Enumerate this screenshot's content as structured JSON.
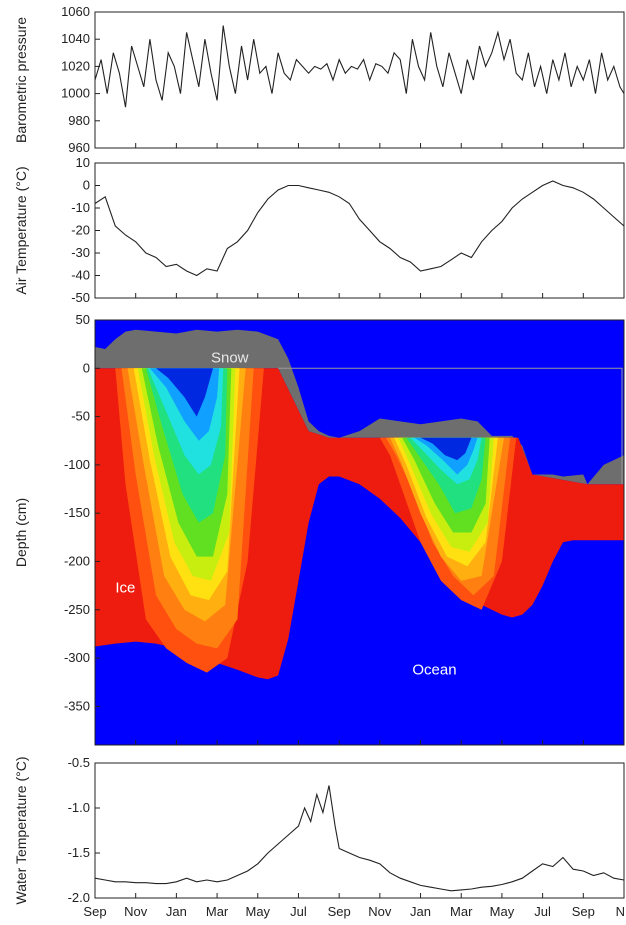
{
  "chart_data": [
    {
      "type": "line",
      "panel": "pressure",
      "ylabel": "Barometric pressure",
      "ylim": [
        960,
        1060
      ],
      "yticks": [
        960,
        980,
        1000,
        1020,
        1040,
        1060
      ],
      "x_range_months": [
        0,
        26
      ],
      "series": [
        {
          "x": [
            0,
            0.3,
            0.6,
            0.9,
            1.2,
            1.5,
            1.8,
            2.1,
            2.4,
            2.7,
            3.0,
            3.3,
            3.6,
            3.9,
            4.2,
            4.5,
            4.8,
            5.1,
            5.4,
            5.7,
            6.0,
            6.3,
            6.6,
            6.9,
            7.2,
            7.5,
            7.8,
            8.1,
            8.4,
            8.7,
            9.0,
            9.3,
            9.6,
            9.9,
            10.2,
            10.5,
            10.8,
            11.1,
            11.4,
            11.7,
            12.0,
            12.3,
            12.6,
            12.9,
            13.2,
            13.5,
            13.8,
            14.1,
            14.4,
            14.7,
            15.0,
            15.3,
            15.6,
            15.9,
            16.2,
            16.5,
            16.8,
            17.1,
            17.4,
            17.7,
            18.0,
            18.3,
            18.6,
            18.9,
            19.2,
            19.5,
            19.8,
            20.1,
            20.4,
            20.7,
            21.0,
            21.3,
            21.6,
            21.9,
            22.2,
            22.5,
            22.8,
            23.1,
            23.4,
            23.7,
            24.0,
            24.3,
            24.6,
            24.9,
            25.2,
            25.5,
            25.8,
            26.0
          ],
          "y": [
            1010,
            1025,
            1000,
            1030,
            1015,
            990,
            1035,
            1020,
            1005,
            1040,
            1010,
            995,
            1030,
            1020,
            1000,
            1045,
            1025,
            1005,
            1040,
            1015,
            995,
            1050,
            1020,
            1000,
            1035,
            1010,
            1040,
            1015,
            1020,
            1000,
            1030,
            1015,
            1010,
            1025,
            1020,
            1015,
            1020,
            1018,
            1022,
            1010,
            1025,
            1015,
            1020,
            1018,
            1025,
            1010,
            1022,
            1020,
            1015,
            1030,
            1025,
            1000,
            1040,
            1020,
            1010,
            1045,
            1020,
            1005,
            1030,
            1015,
            1000,
            1025,
            1010,
            1035,
            1020,
            1030,
            1045,
            1025,
            1040,
            1015,
            1010,
            1030,
            1005,
            1020,
            1000,
            1025,
            1010,
            1030,
            1005,
            1020,
            1010,
            1025,
            1000,
            1030,
            1010,
            1020,
            1005,
            1000
          ]
        }
      ]
    },
    {
      "type": "line",
      "panel": "air",
      "ylabel": "Air Temperature (°C)",
      "ylim": [
        -50,
        10
      ],
      "yticks": [
        -50,
        -40,
        -30,
        -20,
        -10,
        0,
        10
      ],
      "x_range_months": [
        0,
        26
      ],
      "series": [
        {
          "x": [
            0,
            0.5,
            1.0,
            1.5,
            2.0,
            2.5,
            3.0,
            3.5,
            4.0,
            4.5,
            5.0,
            5.5,
            6.0,
            6.5,
            7.0,
            7.5,
            8.0,
            8.5,
            9.0,
            9.5,
            10.0,
            10.5,
            11.0,
            11.5,
            12.0,
            12.5,
            13.0,
            13.5,
            14.0,
            14.5,
            15.0,
            15.5,
            16.0,
            16.5,
            17.0,
            17.5,
            18.0,
            18.5,
            19.0,
            19.5,
            20.0,
            20.5,
            21.0,
            21.5,
            22.0,
            22.5,
            23.0,
            23.5,
            24.0,
            24.5,
            25.0,
            25.5,
            26.0
          ],
          "y": [
            -8,
            -5,
            -18,
            -22,
            -25,
            -30,
            -32,
            -36,
            -35,
            -38,
            -40,
            -37,
            -38,
            -28,
            -25,
            -20,
            -12,
            -6,
            -2,
            0,
            0,
            -1,
            -2,
            -3,
            -5,
            -8,
            -15,
            -20,
            -25,
            -28,
            -32,
            -34,
            -38,
            -37,
            -36,
            -33,
            -30,
            -32,
            -25,
            -20,
            -16,
            -10,
            -6,
            -3,
            0,
            2,
            0,
            -1,
            -3,
            -6,
            -10,
            -14,
            -18
          ]
        }
      ]
    },
    {
      "type": "heatmap",
      "panel": "depth",
      "ylabel": "Depth (cm)",
      "ylim": [
        -390,
        50
      ],
      "yticks": [
        -350,
        -300,
        -250,
        -200,
        -150,
        -100,
        -50,
        0,
        50
      ],
      "annotations": {
        "snow": "Snow",
        "ice": "Ice",
        "ocean": "Ocean"
      },
      "colors": {
        "ocean": "#0000ff",
        "ice": "#ee1c0e",
        "snow": "#6e6e6e"
      },
      "snow_top": {
        "x": [
          0,
          0.5,
          1.0,
          1.5,
          2.0,
          3.0,
          4.0,
          5.0,
          6.0,
          7.0,
          8.0,
          9.0,
          9.5,
          10.0,
          10.5,
          11.0,
          11.5,
          12.0,
          13.0,
          14.0,
          15.0,
          16.0,
          17.0,
          18.0,
          18.8,
          19.5,
          20.5,
          21.0,
          21.5,
          22.0,
          22.5,
          23.0,
          24.0,
          24.2,
          25.0,
          26.0
        ],
        "y": [
          22,
          20,
          30,
          38,
          40,
          38,
          36,
          40,
          38,
          40,
          38,
          30,
          10,
          -20,
          -55,
          -65,
          -70,
          -72,
          -65,
          -52,
          -55,
          -58,
          -55,
          -52,
          -55,
          -70,
          -70,
          -80,
          -110,
          -110,
          -110,
          -112,
          -110,
          -120,
          -100,
          -90
        ]
      },
      "ice_top": {
        "x": [
          0,
          8.5,
          9.0,
          10.5,
          11.5,
          12.0,
          20.8,
          21.5,
          24.2,
          26.0
        ],
        "y": [
          0,
          0,
          0,
          -65,
          -72,
          -72,
          -72,
          -110,
          -120,
          -120
        ]
      },
      "ocean_top": {
        "x": [
          0,
          1.0,
          2.0,
          3.0,
          4.0,
          5.0,
          6.0,
          7.0,
          8.0,
          8.5,
          9.0,
          9.5,
          10.0,
          10.5,
          11.0,
          11.5,
          12.0,
          13.0,
          14.0,
          15.0,
          16.0,
          17.0,
          18.0,
          18.5,
          19.0,
          19.5,
          20.0,
          20.5,
          21.0,
          21.5,
          22.0,
          22.5,
          23.0,
          23.5,
          24.0,
          24.5,
          25.0,
          26.0
        ],
        "y": [
          -288,
          -285,
          -283,
          -285,
          -290,
          -297,
          -305,
          -312,
          -320,
          -322,
          -318,
          -280,
          -220,
          -160,
          -120,
          -112,
          -112,
          -120,
          -135,
          -155,
          -180,
          -205,
          -225,
          -238,
          -245,
          -250,
          -255,
          -258,
          -255,
          -245,
          -225,
          -200,
          -180,
          -178,
          -178,
          -178,
          -178,
          -178
        ]
      },
      "bands": [
        {
          "name": "b1",
          "color": "#ff5010",
          "x": [
            1.0,
            1.5,
            2.5,
            3.5,
            4.5,
            5.5,
            6.5,
            7.5,
            8.3
          ],
          "y": [
            0,
            -120,
            -260,
            -290,
            -305,
            -315,
            -300,
            -200,
            0
          ]
        },
        {
          "name": "b2",
          "color": "#ff8010",
          "x": [
            1.3,
            2.0,
            3.0,
            4.0,
            5.0,
            6.0,
            7.0,
            7.8
          ],
          "y": [
            0,
            -110,
            -235,
            -270,
            -285,
            -290,
            -260,
            0
          ]
        },
        {
          "name": "b3",
          "color": "#ffb010",
          "x": [
            1.6,
            2.4,
            3.4,
            4.4,
            5.4,
            6.4,
            7.4
          ],
          "y": [
            0,
            -100,
            -215,
            -250,
            -262,
            -245,
            0
          ]
        },
        {
          "name": "b4",
          "color": "#ffe010",
          "x": [
            1.9,
            2.7,
            3.7,
            4.7,
            5.6,
            6.5,
            7.1
          ],
          "y": [
            0,
            -95,
            -195,
            -235,
            -240,
            -210,
            0
          ]
        },
        {
          "name": "b5",
          "color": "#c8ee10",
          "x": [
            2.1,
            2.9,
            3.9,
            4.8,
            5.7,
            6.6,
            6.9
          ],
          "y": [
            0,
            -90,
            -180,
            -215,
            -220,
            -170,
            0
          ]
        },
        {
          "name": "b6",
          "color": "#60e020",
          "x": [
            2.3,
            3.1,
            4.1,
            5.0,
            5.8,
            6.5,
            6.7
          ],
          "y": [
            0,
            -80,
            -160,
            -195,
            -195,
            -130,
            0
          ]
        },
        {
          "name": "b7",
          "color": "#20e080",
          "x": [
            2.5,
            3.3,
            4.3,
            5.1,
            5.8,
            6.4,
            6.5
          ],
          "y": [
            0,
            -60,
            -130,
            -160,
            -150,
            -90,
            0
          ]
        },
        {
          "name": "b8",
          "color": "#20e0e0",
          "x": [
            2.6,
            3.4,
            4.4,
            5.1,
            5.7,
            6.2,
            6.3
          ],
          "y": [
            0,
            -40,
            -90,
            -110,
            -100,
            -60,
            0
          ]
        },
        {
          "name": "b9",
          "color": "#10a0ff",
          "x": [
            2.7,
            3.5,
            4.4,
            5.1,
            5.6,
            6.0,
            6.1
          ],
          "y": [
            0,
            -20,
            -55,
            -75,
            -65,
            -30,
            0
          ]
        },
        {
          "name": "b10",
          "color": "#0028e0",
          "x": [
            3.0,
            3.6,
            4.4,
            5.0,
            5.4,
            5.8
          ],
          "y": [
            0,
            -10,
            -30,
            -50,
            -30,
            0
          ]
        },
        {
          "name": "c1",
          "color": "#ff5010",
          "x": [
            14.0,
            14.5,
            15.0,
            16.0,
            17.0,
            18.0,
            19.0,
            20.0,
            20.7
          ],
          "y": [
            -72,
            -90,
            -120,
            -180,
            -220,
            -240,
            -250,
            -200,
            -72
          ]
        },
        {
          "name": "c2",
          "color": "#ff8010",
          "x": [
            14.3,
            14.8,
            15.6,
            16.6,
            17.6,
            18.6,
            19.6,
            20.4
          ],
          "y": [
            -72,
            -90,
            -125,
            -180,
            -215,
            -235,
            -215,
            -72
          ]
        },
        {
          "name": "c3",
          "color": "#ffb010",
          "x": [
            14.5,
            15.0,
            16.0,
            17.0,
            18.0,
            19.0,
            20.1
          ],
          "y": [
            -72,
            -95,
            -150,
            -195,
            -220,
            -215,
            -72
          ]
        },
        {
          "name": "c4",
          "color": "#ffe010",
          "x": [
            14.7,
            15.3,
            16.3,
            17.3,
            18.3,
            19.2,
            19.8
          ],
          "y": [
            -72,
            -100,
            -155,
            -195,
            -205,
            -180,
            -72
          ]
        },
        {
          "name": "c5",
          "color": "#c8ee10",
          "x": [
            14.9,
            15.5,
            16.5,
            17.5,
            18.4,
            19.3,
            19.6
          ],
          "y": [
            -72,
            -100,
            -150,
            -185,
            -190,
            -160,
            -72
          ]
        },
        {
          "name": "c6",
          "color": "#60e020",
          "x": [
            15.1,
            15.7,
            16.7,
            17.6,
            18.5,
            19.2,
            19.4
          ],
          "y": [
            -72,
            -95,
            -140,
            -170,
            -170,
            -140,
            -72
          ]
        },
        {
          "name": "c7",
          "color": "#20e080",
          "x": [
            15.3,
            15.9,
            16.9,
            17.7,
            18.5,
            19.0,
            19.2
          ],
          "y": [
            -72,
            -90,
            -120,
            -150,
            -145,
            -115,
            -72
          ]
        },
        {
          "name": "c8",
          "color": "#20e0e0",
          "x": [
            15.5,
            16.1,
            17.0,
            17.8,
            18.4,
            18.8,
            19.0
          ],
          "y": [
            -72,
            -85,
            -105,
            -120,
            -115,
            -95,
            -72
          ]
        },
        {
          "name": "c9",
          "color": "#10a0ff",
          "x": [
            15.7,
            16.3,
            17.1,
            17.8,
            18.3,
            18.6,
            18.8
          ],
          "y": [
            -72,
            -80,
            -95,
            -110,
            -100,
            -85,
            -72
          ]
        },
        {
          "name": "c10",
          "color": "#0028e0",
          "x": [
            16.0,
            16.6,
            17.2,
            17.8,
            18.2,
            18.5
          ],
          "y": [
            -72,
            -78,
            -90,
            -95,
            -88,
            -72
          ]
        }
      ]
    },
    {
      "type": "line",
      "panel": "water",
      "ylabel": "Water Temperature (°C)",
      "ylim": [
        -2.0,
        -0.5
      ],
      "yticks": [
        -2.0,
        -1.5,
        -1.0,
        -0.5
      ],
      "ytick_labels": [
        "-2.0",
        "-1.5",
        "-1.0",
        "-0.5"
      ],
      "x_range_months": [
        0,
        26
      ],
      "xticks": [
        0,
        2,
        4,
        6,
        8,
        10,
        12,
        14,
        16,
        18,
        20,
        22,
        24,
        26
      ],
      "xtick_labels": [
        "Sep",
        "Nov",
        "Jan",
        "Mar",
        "May",
        "Jul",
        "Sep",
        "Nov",
        "Jan",
        "Mar",
        "May",
        "Jul",
        "Sep",
        "N"
      ],
      "series": [
        {
          "x": [
            0,
            0.5,
            1.0,
            1.5,
            2.0,
            2.5,
            3.0,
            3.5,
            4.0,
            4.5,
            5.0,
            5.5,
            6.0,
            6.5,
            7.0,
            7.5,
            8.0,
            8.5,
            9.0,
            9.5,
            10.0,
            10.3,
            10.6,
            10.9,
            11.2,
            11.5,
            11.8,
            12.0,
            12.5,
            13.0,
            13.5,
            14.0,
            14.5,
            15.0,
            15.5,
            16.0,
            16.5,
            17.0,
            17.5,
            18.0,
            18.5,
            19.0,
            19.5,
            20.0,
            20.5,
            21.0,
            21.5,
            22.0,
            22.5,
            23.0,
            23.5,
            24.0,
            24.5,
            25.0,
            25.5,
            26.0
          ],
          "y": [
            -1.78,
            -1.8,
            -1.82,
            -1.82,
            -1.83,
            -1.83,
            -1.84,
            -1.84,
            -1.82,
            -1.78,
            -1.82,
            -1.8,
            -1.82,
            -1.8,
            -1.75,
            -1.7,
            -1.62,
            -1.5,
            -1.4,
            -1.3,
            -1.2,
            -1.0,
            -1.15,
            -0.85,
            -1.05,
            -0.75,
            -1.2,
            -1.45,
            -1.5,
            -1.55,
            -1.58,
            -1.62,
            -1.72,
            -1.78,
            -1.82,
            -1.86,
            -1.88,
            -1.9,
            -1.92,
            -1.91,
            -1.9,
            -1.88,
            -1.87,
            -1.85,
            -1.82,
            -1.78,
            -1.7,
            -1.62,
            -1.65,
            -1.55,
            -1.68,
            -1.7,
            -1.75,
            -1.72,
            -1.78,
            -1.8
          ]
        }
      ]
    }
  ]
}
